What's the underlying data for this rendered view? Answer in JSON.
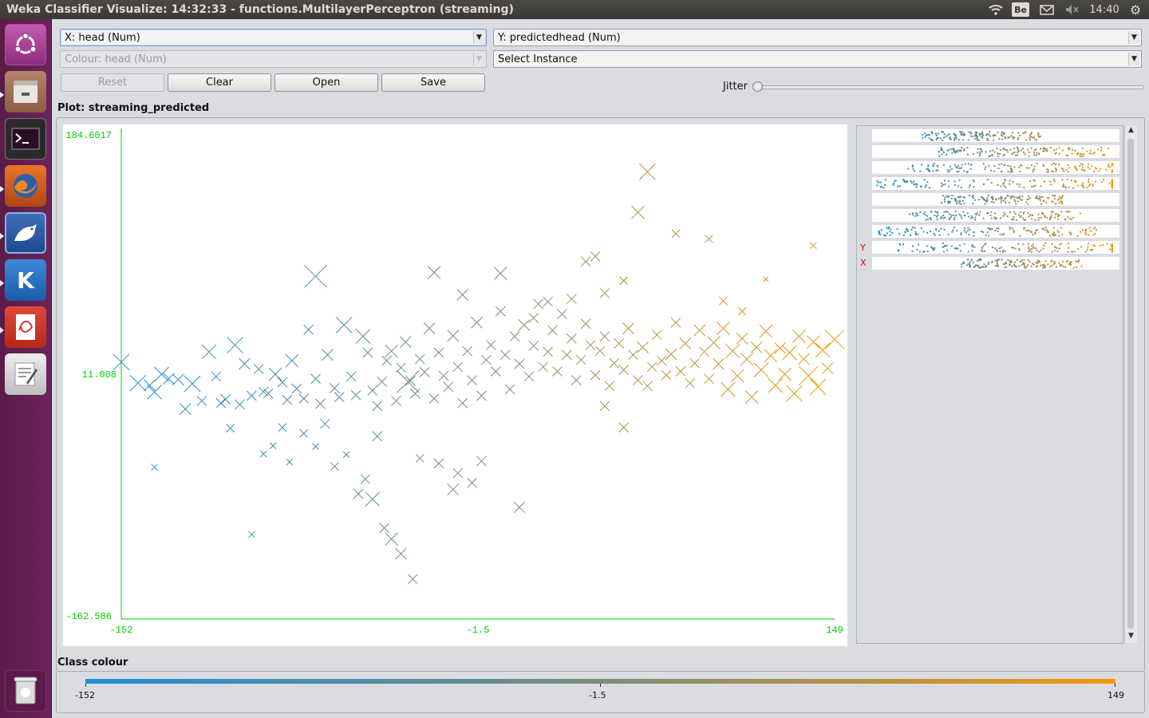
{
  "window": {
    "title": "Weka Classifier Visualize: 14:32:33 - functions.MultilayerPerceptron (streaming)"
  },
  "tray": {
    "keyboard": "Be",
    "time": "14:40"
  },
  "launcher": {
    "items": [
      "ubuntu-logo",
      "files",
      "terminal",
      "firefox",
      "weka",
      "kile",
      "document-viewer",
      "text-editor",
      "trash"
    ]
  },
  "controls": {
    "x_axis": "X: head (Num)",
    "y_axis": "Y: predictedhead (Num)",
    "colour": "Colour: head (Num)",
    "select_instance": "Select Instance",
    "buttons": {
      "reset": "Reset",
      "clear": "Clear",
      "open": "Open",
      "save": "Save"
    },
    "jitter_label": "Jitter",
    "jitter_value": 0
  },
  "plot": {
    "label": "Plot: streaming_predicted"
  },
  "chart_data": {
    "type": "scatter",
    "x_ticks": [
      "-152",
      "-1.5",
      "149"
    ],
    "y_ticks": [
      "184.6017",
      "11.008",
      "-162.586"
    ],
    "xlim": [
      -152,
      149
    ],
    "ylim": [
      -162.586,
      184.6017
    ],
    "marker": "cross",
    "color_scale": {
      "low": "#1e90d8",
      "mid": "#7c8d7c",
      "high": "#f2980b"
    },
    "points": [
      [
        -152,
        20.0,
        10
      ],
      [
        -145,
        4.8,
        10
      ],
      [
        -140,
        3.2,
        7
      ],
      [
        -138,
        -1.6,
        9
      ],
      [
        -135,
        11.2,
        9
      ],
      [
        -132,
        8.0,
        7
      ],
      [
        -128,
        7.4,
        7
      ],
      [
        -125,
        -13.8,
        7
      ],
      [
        -122,
        4.4,
        10
      ],
      [
        -118,
        -7.9,
        6
      ],
      [
        -115,
        27.4,
        9
      ],
      [
        -112,
        9.6,
        6
      ],
      [
        -108,
        -6.8,
        6
      ],
      [
        -104,
        32.2,
        10
      ],
      [
        -102,
        -10.5,
        6
      ],
      [
        -100,
        18.7,
        7
      ],
      [
        -97,
        -4.2,
        6
      ],
      [
        -94,
        15.0,
        6
      ],
      [
        -92,
        -1.3,
        6
      ],
      [
        -90,
        -2.6,
        6
      ],
      [
        -87,
        11.2,
        8
      ],
      [
        -84,
        5.4,
        6
      ],
      [
        -82,
        -7.3,
        6
      ],
      [
        -80,
        21.0,
        8
      ],
      [
        -78,
        0.9,
        6
      ],
      [
        -75,
        -6.3,
        6
      ],
      [
        -73,
        43.3,
        6
      ],
      [
        -70,
        8.0,
        6
      ],
      [
        -68,
        -10.0,
        6
      ],
      [
        -65,
        25.2,
        7
      ],
      [
        -62,
        1.2,
        6
      ],
      [
        -60,
        -5.2,
        6
      ],
      [
        -58,
        46.6,
        10
      ],
      [
        -55,
        9.6,
        6
      ],
      [
        -53,
        -3.8,
        6
      ],
      [
        -50,
        38.5,
        9
      ],
      [
        -48,
        26.8,
        6
      ],
      [
        -46,
        -0.5,
        6
      ],
      [
        -44,
        -11.6,
        6
      ],
      [
        -42,
        5.9,
        6
      ],
      [
        -40,
        21.0,
        6
      ],
      [
        -38,
        27.9,
        8
      ],
      [
        -36,
        -7.9,
        6
      ],
      [
        -34,
        16.0,
        6
      ],
      [
        -32,
        34.4,
        7
      ],
      [
        -30,
        6.4,
        6
      ],
      [
        -28,
        -2.6,
        6
      ],
      [
        -26,
        22.1,
        6
      ],
      [
        -24,
        12.8,
        6
      ],
      [
        -22,
        44.2,
        7
      ],
      [
        -20,
        -6.3,
        6
      ],
      [
        -18,
        26.8,
        6
      ],
      [
        -16,
        10.1,
        6
      ],
      [
        -14,
        2.2,
        6
      ],
      [
        -12,
        38.9,
        7
      ],
      [
        -10,
        16.5,
        6
      ],
      [
        -8,
        -9.5,
        6
      ],
      [
        -6,
        27.9,
        6
      ],
      [
        -4,
        6.9,
        6
      ],
      [
        -2,
        48.4,
        7
      ],
      [
        0,
        -4.2,
        6
      ],
      [
        2,
        21.6,
        6
      ],
      [
        4,
        32.2,
        6
      ],
      [
        6,
        13.3,
        6
      ],
      [
        8,
        56.5,
        6
      ],
      [
        10,
        25.2,
        6
      ],
      [
        12,
        0.4,
        6
      ],
      [
        14,
        38.5,
        6
      ],
      [
        16,
        18.7,
        6
      ],
      [
        18,
        46.6,
        7
      ],
      [
        20,
        9.6,
        6
      ],
      [
        22,
        31.7,
        6
      ],
      [
        24,
        61.8,
        6
      ],
      [
        26,
        16.5,
        6
      ],
      [
        28,
        27.4,
        6
      ],
      [
        30,
        42.8,
        6
      ],
      [
        32,
        13.3,
        6
      ],
      [
        34,
        54.5,
        6
      ],
      [
        36,
        25.2,
        6
      ],
      [
        38,
        36.9,
        6
      ],
      [
        40,
        6.9,
        6
      ],
      [
        42,
        21.6,
        6
      ],
      [
        44,
        47.5,
        6
      ],
      [
        46,
        32.2,
        6
      ],
      [
        48,
        10.6,
        6
      ],
      [
        50,
        27.9,
        6
      ],
      [
        52,
        38.5,
        6
      ],
      [
        54,
        2.8,
        6
      ],
      [
        56,
        19.2,
        6
      ],
      [
        58,
        33.4,
        6
      ],
      [
        60,
        14.4,
        6
      ],
      [
        62,
        44.2,
        7
      ],
      [
        64,
        25.2,
        6
      ],
      [
        66,
        6.9,
        6
      ],
      [
        68,
        30.6,
        7
      ],
      [
        70,
        2.8,
        6
      ],
      [
        72,
        16.5,
        6
      ],
      [
        74,
        39.6,
        6
      ],
      [
        76,
        21.0,
        6
      ],
      [
        78,
        10.6,
        6
      ],
      [
        80,
        25.7,
        7
      ],
      [
        82,
        48.4,
        6
      ],
      [
        84,
        13.3,
        6
      ],
      [
        86,
        33.4,
        7
      ],
      [
        88,
        4.8,
        6
      ],
      [
        90,
        19.2,
        6
      ],
      [
        92,
        42.8,
        7
      ],
      [
        94,
        27.4,
        6
      ],
      [
        96,
        8.0,
        6
      ],
      [
        98,
        33.9,
        8
      ],
      [
        100,
        18.7,
        7
      ],
      [
        102,
        44.2,
        8
      ],
      [
        104,
        0.4,
        9
      ],
      [
        106,
        27.9,
        9
      ],
      [
        108,
        10.1,
        8
      ],
      [
        110,
        36.9,
        7
      ],
      [
        112,
        22.1,
        8
      ],
      [
        114,
        -5.2,
        8
      ],
      [
        116,
        30.6,
        7
      ],
      [
        118,
        14.4,
        9
      ],
      [
        120,
        42.2,
        8
      ],
      [
        122,
        24.6,
        8
      ],
      [
        124,
        3.2,
        9
      ],
      [
        126,
        30.0,
        7
      ],
      [
        128,
        11.2,
        8
      ],
      [
        130,
        26.8,
        9
      ],
      [
        132,
        -2.6,
        10
      ],
      [
        134,
        38.5,
        8
      ],
      [
        136,
        22.1,
        7
      ],
      [
        138,
        10.1,
        12
      ],
      [
        140,
        34.4,
        8
      ],
      [
        142,
        2.2,
        10
      ],
      [
        144,
        28.5,
        9
      ],
      [
        146,
        15.5,
        7
      ],
      [
        149,
        36.3,
        12
      ],
      [
        -92,
        -46.1,
        4
      ],
      [
        -81,
        -51.9,
        4
      ],
      [
        -57,
        -46.6,
        4
      ],
      [
        -52,
        -74.8,
        6
      ],
      [
        -49,
        -64.2,
        6
      ],
      [
        -46,
        -78.6,
        9
      ],
      [
        -41,
        -99.3,
        6
      ],
      [
        -38,
        -107.3,
        8
      ],
      [
        -34,
        -117.9,
        7
      ],
      [
        -29,
        -136.0,
        6
      ],
      [
        -12,
        -71.6,
        7
      ],
      [
        -10,
        -59.9,
        6
      ],
      [
        -4,
        -66.8,
        6
      ],
      [
        0,
        -51.3,
        6
      ],
      [
        16,
        -84.5,
        7
      ],
      [
        -18,
        -52.9,
        6
      ],
      [
        -26,
        -49.2,
        5
      ],
      [
        -62,
        -55.1,
        5
      ],
      [
        -70,
        -40.8,
        4
      ],
      [
        -88,
        -40.2,
        4
      ],
      [
        -70,
        81.7,
        14
      ],
      [
        -20,
        84.4,
        8
      ],
      [
        8,
        83.8,
        8
      ],
      [
        44,
        92.3,
        6
      ],
      [
        48,
        96.0,
        6
      ],
      [
        60,
        78.5,
        5
      ],
      [
        52,
        69.5,
        6
      ],
      [
        66,
        127.7,
        8
      ],
      [
        70,
        156.9,
        10
      ],
      [
        82,
        112.3,
        5
      ],
      [
        96,
        108.6,
        5
      ],
      [
        140,
        103.8,
        4
      ],
      [
        120,
        79.6,
        3
      ],
      [
        28,
        63.4,
        6
      ],
      [
        38,
        65.5,
        6
      ],
      [
        -31,
        5.9,
        14
      ],
      [
        -138,
        -55.6,
        4
      ],
      [
        -97,
        -104.1,
        4
      ],
      [
        60,
        -27.0,
        6
      ],
      [
        52,
        -11.6,
        6
      ],
      [
        102,
        63.9,
        5
      ],
      [
        110,
        56.5,
        5
      ],
      [
        22,
        51.7,
        6
      ],
      [
        -8,
        68.4,
        7
      ],
      [
        -44,
        -33.4,
        6
      ],
      [
        -66,
        -24.4,
        6
      ],
      [
        -75,
        -31.3,
        5
      ],
      [
        -84,
        -27.1,
        5
      ],
      [
        -106,
        -27.6,
        5
      ],
      [
        -110,
        -9.5,
        6
      ]
    ]
  },
  "attribute_panel": {
    "y_flag": "Y",
    "x_flag": "X"
  },
  "class_colour": {
    "label": "Class colour",
    "ticks": [
      "-152",
      "-1.5",
      "149"
    ]
  }
}
